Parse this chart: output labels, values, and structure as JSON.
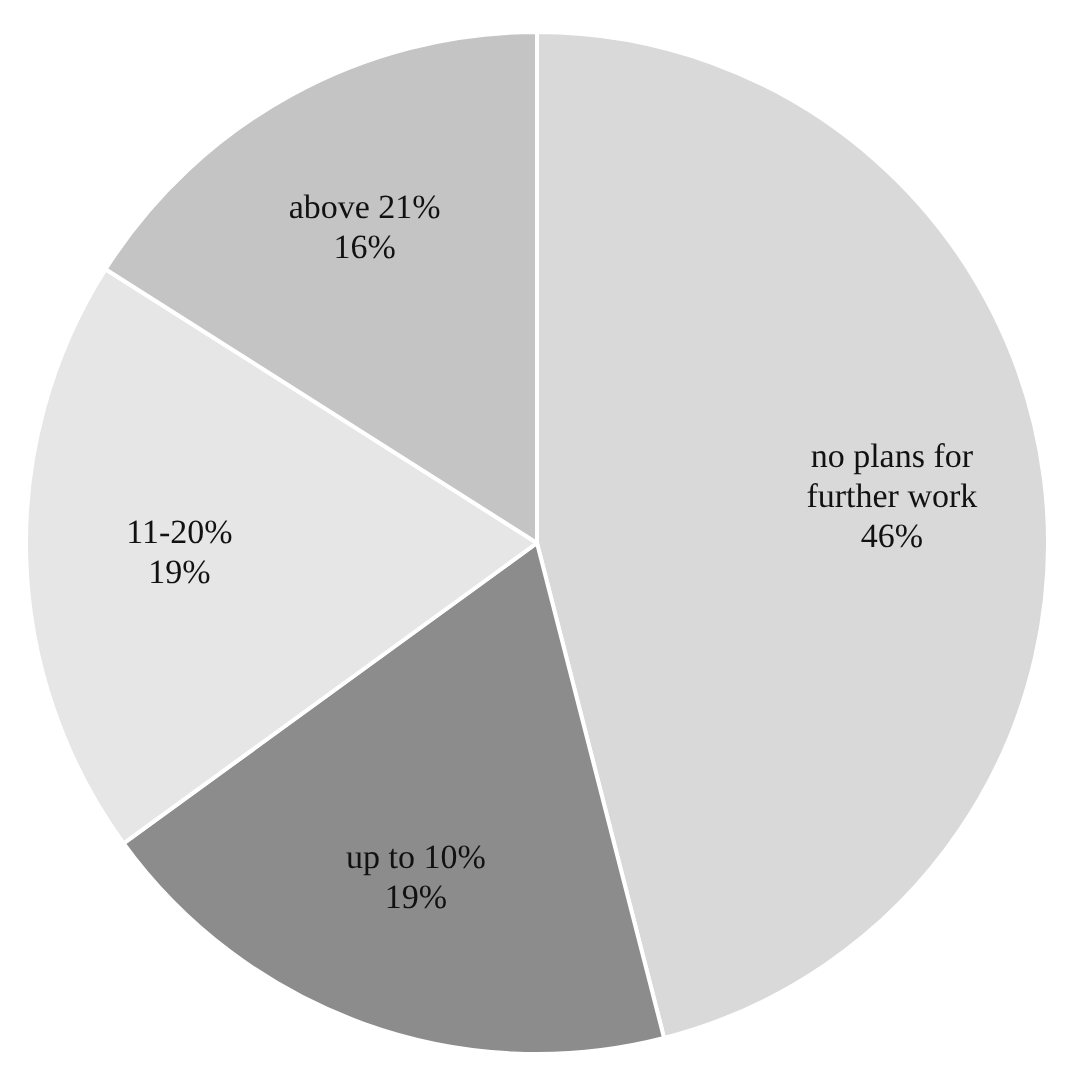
{
  "chart_data": {
    "type": "pie",
    "categories": [
      "no plans for further work",
      "up to 10%",
      "11-20%",
      "above 21%"
    ],
    "values": [
      46,
      19,
      19,
      16
    ],
    "value_labels": [
      "46%",
      "19%",
      "19%",
      "16%"
    ],
    "colors": [
      "#d9d9d9",
      "#8c8c8c",
      "#e6e6e6",
      "#c4c4c4"
    ],
    "legend": false
  }
}
